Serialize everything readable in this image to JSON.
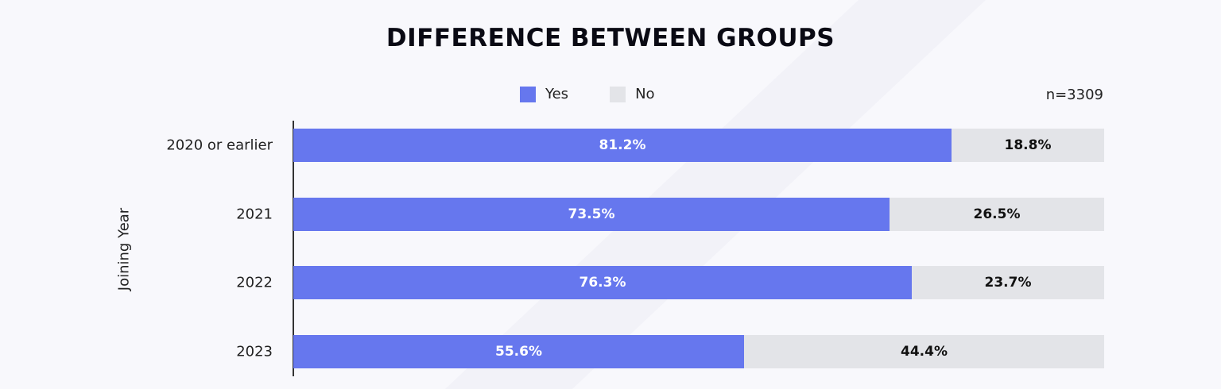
{
  "chart_data": {
    "type": "bar",
    "orientation": "horizontal",
    "stacked": true,
    "title": "DIFFERENCE BETWEEN GROUPS",
    "ylabel": "Joining Year",
    "note": "n=3309",
    "categories": [
      "2020 or earlier",
      "2021",
      "2022",
      "2023"
    ],
    "series": [
      {
        "name": "Yes",
        "color": "#6677ee",
        "values": [
          81.2,
          73.5,
          76.3,
          55.6
        ],
        "labels": [
          "81.2%",
          "73.5%",
          "76.3%",
          "55.6%"
        ]
      },
      {
        "name": "No",
        "color": "#e3e4e8",
        "values": [
          18.8,
          26.5,
          23.7,
          44.4
        ],
        "labels": [
          "18.8%",
          "26.5%",
          "23.7%",
          "44.4%"
        ]
      }
    ],
    "xlim": [
      0,
      100
    ],
    "legend_position": "top",
    "grid": false
  }
}
